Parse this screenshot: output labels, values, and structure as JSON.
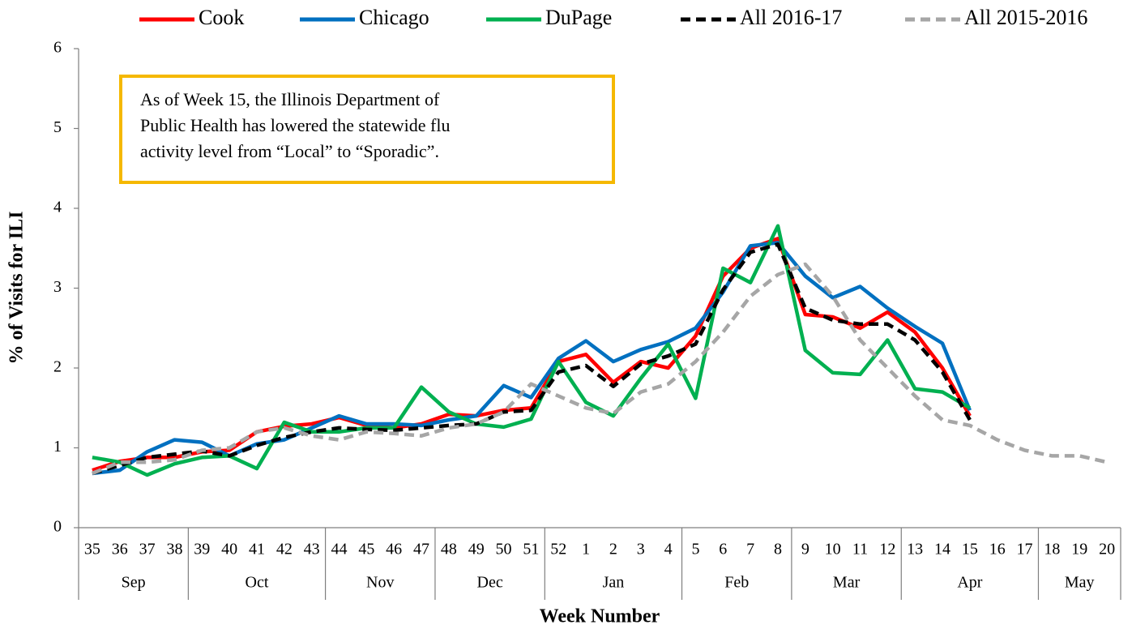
{
  "chart_data": {
    "type": "line",
    "y_label": "% of Visits for ILI",
    "x_label": "Week Number",
    "annotation": [
      "As of Week 15, the Illinois Department of",
      "Public Health has lowered the statewide flu",
      "activity level from “Local” to “Sporadic”."
    ],
    "groups": [
      {
        "label": "Sep",
        "categories": [
          35,
          36,
          37,
          38
        ]
      },
      {
        "label": "Oct",
        "categories": [
          39,
          40,
          41,
          42,
          43
        ]
      },
      {
        "label": "Nov",
        "categories": [
          44,
          45,
          46,
          47
        ]
      },
      {
        "label": "Dec",
        "categories": [
          48,
          49,
          50,
          51
        ]
      },
      {
        "label": "Jan",
        "categories": [
          52,
          1,
          2,
          3,
          4
        ]
      },
      {
        "label": "Feb",
        "categories": [
          5,
          6,
          7,
          8
        ]
      },
      {
        "label": "Mar",
        "categories": [
          9,
          10,
          11,
          12
        ]
      },
      {
        "label": "Apr",
        "categories": [
          13,
          14,
          15,
          16,
          17
        ]
      },
      {
        "label": "May",
        "categories": [
          18,
          19,
          20
        ]
      }
    ],
    "series": [
      {
        "name": "Cook",
        "color": "#ff0000",
        "dashed": false,
        "values": [
          0.72,
          0.83,
          0.88,
          0.88,
          0.95,
          0.97,
          1.2,
          1.27,
          1.3,
          1.38,
          1.28,
          1.25,
          1.3,
          1.42,
          1.4,
          1.47,
          1.5,
          2.08,
          2.17,
          1.82,
          2.08,
          2.0,
          2.4,
          3.15,
          3.5,
          3.62,
          2.67,
          2.64,
          2.5,
          2.7,
          2.45,
          2.0,
          1.4,
          null,
          null,
          null,
          null,
          null
        ]
      },
      {
        "name": "Chicago",
        "color": "#0070c0",
        "dashed": false,
        "values": [
          0.68,
          0.72,
          0.95,
          1.1,
          1.07,
          0.9,
          1.05,
          1.1,
          1.25,
          1.4,
          1.3,
          1.3,
          1.28,
          1.35,
          1.4,
          1.78,
          1.63,
          2.12,
          2.34,
          2.08,
          2.23,
          2.33,
          2.5,
          2.95,
          3.53,
          3.57,
          3.15,
          2.88,
          3.02,
          2.75,
          2.52,
          2.31,
          1.47,
          null,
          null,
          null,
          null,
          null
        ]
      },
      {
        "name": "DuPage",
        "color": "#00b050",
        "dashed": false,
        "values": [
          0.88,
          0.82,
          0.66,
          0.8,
          0.88,
          0.9,
          0.74,
          1.32,
          1.2,
          1.2,
          1.25,
          1.25,
          1.76,
          1.45,
          1.3,
          1.26,
          1.36,
          2.08,
          1.57,
          1.4,
          1.87,
          2.3,
          1.62,
          3.25,
          3.07,
          3.78,
          2.22,
          1.94,
          1.92,
          2.35,
          1.74,
          1.7,
          1.5,
          null,
          null,
          null,
          null,
          null
        ]
      },
      {
        "name": "All 2016-17",
        "color": "#000000",
        "dashed": true,
        "values": [
          0.68,
          0.78,
          0.88,
          0.92,
          0.96,
          0.9,
          1.03,
          1.13,
          1.2,
          1.25,
          1.23,
          1.22,
          1.25,
          1.28,
          1.3,
          1.45,
          1.47,
          1.95,
          2.03,
          1.77,
          2.05,
          2.15,
          2.3,
          2.98,
          3.45,
          3.55,
          2.75,
          2.6,
          2.55,
          2.55,
          2.35,
          1.95,
          1.35,
          null,
          null,
          null,
          null,
          null
        ]
      },
      {
        "name": "All 2015-2016",
        "color": "#a6a6a6",
        "dashed": true,
        "values": [
          0.68,
          0.82,
          0.82,
          0.85,
          0.97,
          1.0,
          1.2,
          1.25,
          1.15,
          1.1,
          1.2,
          1.18,
          1.15,
          1.25,
          1.3,
          1.45,
          1.8,
          1.65,
          1.5,
          1.43,
          1.7,
          1.8,
          2.08,
          2.45,
          2.9,
          3.17,
          3.3,
          2.9,
          2.35,
          2.0,
          1.65,
          1.35,
          1.28,
          1.1,
          0.97,
          0.9,
          0.9,
          0.82
        ]
      }
    ],
    "ylim": [
      0,
      6
    ],
    "yticks": [
      0,
      1,
      2,
      3,
      4,
      5,
      6
    ],
    "legend": "top"
  }
}
